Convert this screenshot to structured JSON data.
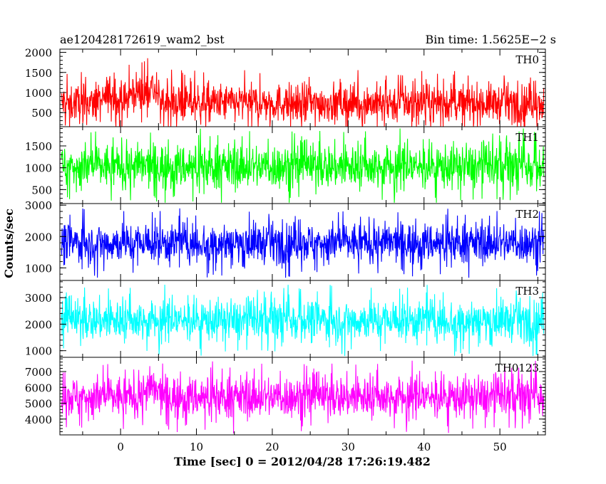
{
  "header": {
    "title": "ae120428172619_wam2_bst",
    "bin_time": "Bin time: 1.5625E−2 s"
  },
  "axes": {
    "xlabel": "Time [sec] 0 = 2012/04/28 17:26:19.482",
    "ylabel": "Counts/sec"
  },
  "chart_data": {
    "type": "line",
    "x_range": [
      -8,
      56
    ],
    "x_ticks": [
      0,
      10,
      20,
      30,
      40,
      50
    ],
    "bin_time_s": 0.015625,
    "panels": [
      {
        "name": "TH0",
        "color": "#ff0000",
        "ylim": [
          150,
          2080
        ],
        "y_ticks": [
          500,
          1000,
          1500,
          2000
        ],
        "x_start": -7.8,
        "x_end": 55.8,
        "level": 740,
        "spread": 520,
        "top": 2050,
        "bottom": 150,
        "features": [
          {
            "x": -1.5,
            "level": 1000,
            "w": 0.6
          },
          {
            "x": 2.0,
            "level": 1050,
            "w": 1.0
          },
          {
            "x": 4.0,
            "level": 1150,
            "w": 0.8
          }
        ]
      },
      {
        "name": "TH1",
        "color": "#00ff00",
        "ylim": [
          180,
          1940
        ],
        "y_ticks": [
          500,
          1000,
          1500
        ],
        "x_start": -7.8,
        "x_end": 55.8,
        "level": 1030,
        "spread": 560,
        "top": 1900,
        "bottom": 200,
        "features": []
      },
      {
        "name": "TH2",
        "color": "#0000ff",
        "ylim": [
          600,
          3050
        ],
        "y_ticks": [
          1000,
          2000,
          3000
        ],
        "x_start": -7.8,
        "x_end": 55.8,
        "level": 1800,
        "spread": 700,
        "top": 3000,
        "bottom": 650,
        "features": []
      },
      {
        "name": "TH3",
        "color": "#00ffff",
        "ylim": [
          750,
          3650
        ],
        "y_ticks": [
          1000,
          2000,
          3000
        ],
        "x_start": -7.8,
        "x_end": 55.8,
        "level": 2150,
        "spread": 850,
        "top": 3600,
        "bottom": 800,
        "features": []
      },
      {
        "name": "TH0123",
        "color": "#ff00ff",
        "ylim": [
          3000,
          7900
        ],
        "y_ticks": [
          4000,
          5000,
          6000,
          7000
        ],
        "x_start": -7.8,
        "x_end": 55.8,
        "level": 5400,
        "spread": 1450,
        "top": 7900,
        "bottom": 3000,
        "features": [
          {
            "x": 4.0,
            "level": 5900,
            "w": 1.2
          }
        ]
      }
    ]
  }
}
